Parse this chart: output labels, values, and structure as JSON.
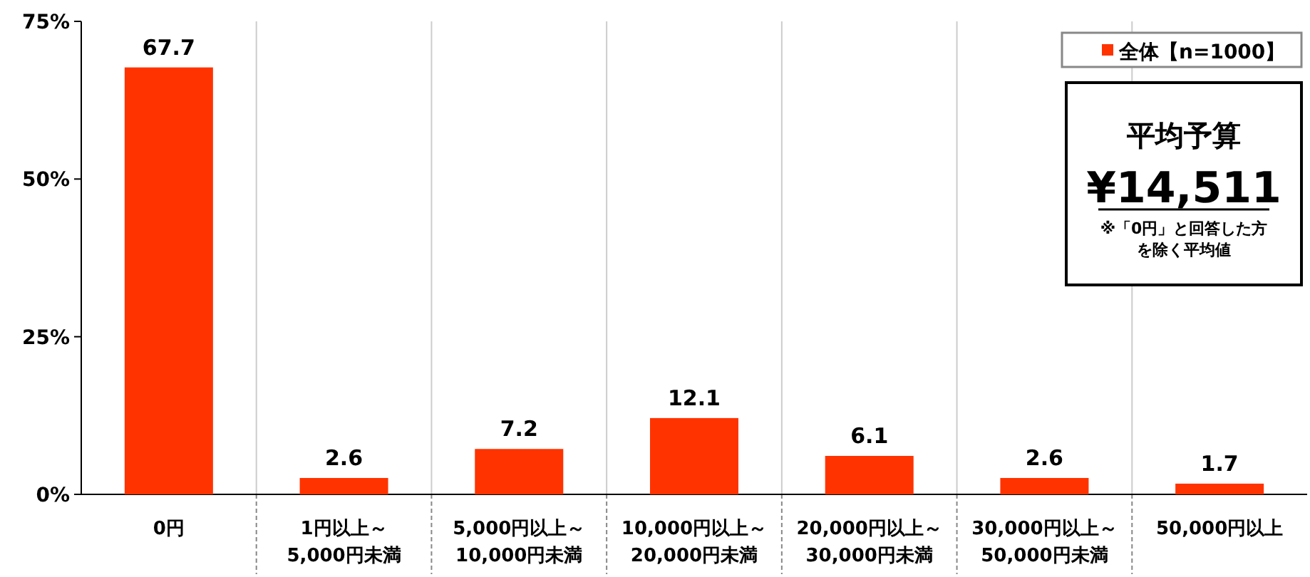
{
  "chart_data": {
    "type": "bar",
    "categories": [
      "0円",
      "1円以上～\n5,000円未満",
      "5,000円以上～\n10,000円未満",
      "10,000円以上～\n20,000円未満",
      "20,000円以上～\n30,000円未満",
      "30,000円以上～\n50,000円未満",
      "50,000円以上"
    ],
    "series": [
      {
        "name": "全体【n=1000】",
        "color": "#ff3300",
        "values": [
          67.7,
          2.6,
          7.2,
          12.1,
          6.1,
          2.6,
          1.7
        ]
      }
    ],
    "ylim": [
      0,
      75
    ],
    "yticks": [
      {
        "value": 0,
        "label": "0%"
      },
      {
        "value": 25,
        "label": "25%"
      },
      {
        "value": 50,
        "label": "50%"
      },
      {
        "value": 75,
        "label": "75%"
      }
    ],
    "grid": "x",
    "legend": "top right",
    "data_labels": true,
    "annotations": [
      "平均予算",
      "¥14,511",
      "※「0円」と回答した方を除く平均値"
    ]
  }
}
